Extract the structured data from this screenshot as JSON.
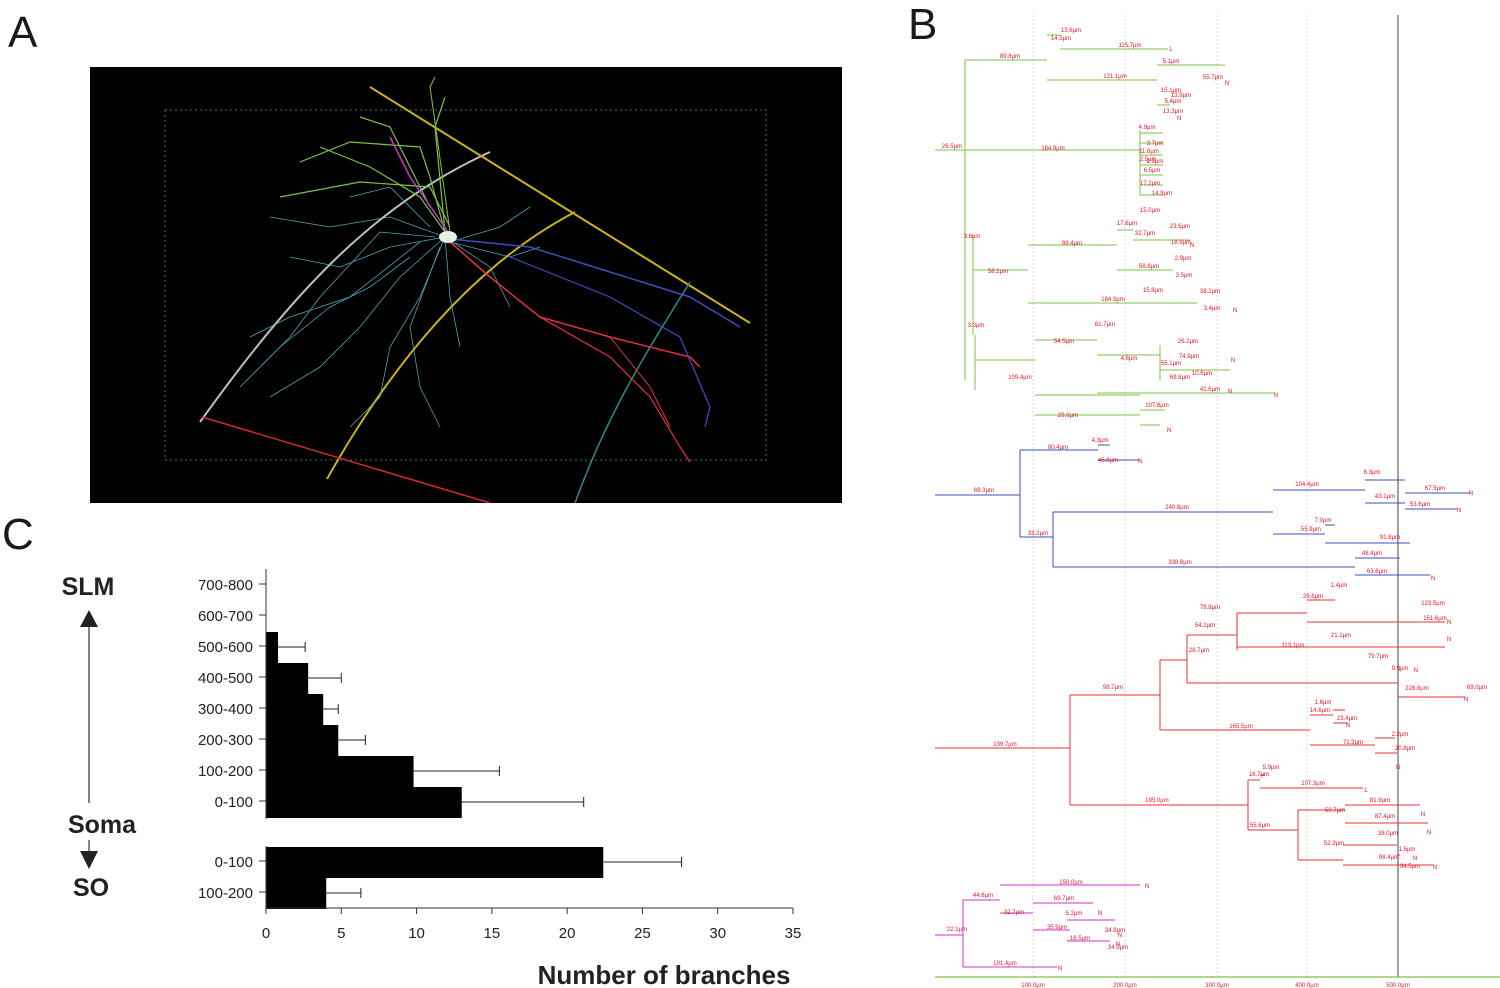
{
  "panels": {
    "a": "A",
    "b": "B",
    "c": "C"
  },
  "colors": {
    "background": "#ffffff",
    "bar": "#000000",
    "dendrite_green": "#7cc242",
    "dendrite_blue": "#3c4fbf",
    "dendrite_red": "#e8303a",
    "dendrite_magenta": "#cc33cc",
    "axis": "#7cc242"
  },
  "micrograph": {
    "description_icon": "neuron-reconstruction"
  },
  "dendrogram": {
    "x_ticks": [
      "100.0µm",
      "200.0µm",
      "300.0µm",
      "400.0µm",
      "500.0µm"
    ],
    "labels": {
      "green": [
        "13.6µm",
        "14.5µm",
        "115.7µm",
        "89.8µm",
        "121.1µm",
        "5.1µm",
        "55.7µm",
        "15.1µm",
        "13.9µm",
        "5.4µm",
        "13.3µm",
        "26.5µm",
        "184.9µm",
        "4.9µm",
        "3.7µm",
        "11.6µm",
        "2.5µm",
        "2.9µm",
        "6.5µm",
        "17.2µm",
        "14.9µm",
        "15.0µm",
        "17.6µm",
        "23.6µm",
        "32.7µm",
        "18.9µm",
        "3.8µm",
        "99.4µm",
        "2.9µm",
        "58.8µm",
        "3.5µm",
        "58.1µm",
        "15.8µm",
        "184.3µm",
        "38.2µm",
        "3.4µm",
        "3.0µm",
        "61.7µm",
        "54.5µm",
        "26.2µm",
        "74.9µm",
        "4.6µm",
        "55.1µm",
        "10.6µm",
        "69.8µm",
        "109.4µm",
        "41.6µm",
        "107.8µm",
        "29.8µm"
      ],
      "blue": [
        "80.4µm",
        "4.3µm",
        "45.8µm",
        "69.3µm",
        "104.4µm",
        "6.3µm",
        "67.5µm",
        "43.1µm",
        "53.6µm",
        "240.8µm",
        "7.0µm",
        "55.9µm",
        "91.8µm",
        "33.2µm",
        "48.4µm",
        "338.8µm",
        "63.6µm"
      ],
      "red": [
        "1.4µm",
        "29.6µm",
        "123.5µm",
        "78.8µm",
        "151.6µm",
        "54.2µm",
        "21.1µm",
        "113.1µm",
        "79.7µm",
        "28.7µm",
        "9.9µm",
        "228.8µm",
        "69.0µm",
        "98.7µm",
        "1.6µm",
        "14.6µm",
        "23.4µm",
        "165.5µm",
        "2.2µm",
        "71.3µm",
        "20.8µm",
        "139.7µm",
        "5.9µm",
        "16.7µm",
        "107.3µm",
        "195.0µm",
        "81.9µm",
        "50.7µm",
        "87.4µm",
        "55.6µm",
        "38.0µm",
        "52.3µm",
        "1.5µm",
        "98.4µm",
        "34.5µm"
      ],
      "magenta": [
        "150.0µm",
        "44.6µm",
        "69.7µm",
        "32.7µm",
        "5.2µm",
        "35.9µm",
        "34.8µm",
        "18.5µm",
        "34.5µm",
        "22.1µm",
        "101.4µm"
      ]
    },
    "end_markers": [
      "N",
      "L"
    ]
  },
  "chart_data": {
    "type": "bar",
    "orientation": "horizontal",
    "xlabel": "Number of branches",
    "xlim": [
      0,
      35
    ],
    "x_ticks": [
      0,
      5,
      10,
      15,
      20,
      25,
      30,
      35
    ],
    "top_label": "SLM",
    "middle_label": "Soma",
    "bottom_label": "SO",
    "groups": [
      {
        "name": "SLM side",
        "categories": [
          "700-800",
          "600-700",
          "500-600",
          "400-500",
          "300-400",
          "200-300",
          "100-200",
          "0-100"
        ],
        "values": [
          0,
          0,
          0.8,
          2.8,
          3.8,
          4.8,
          9.8,
          13.0
        ],
        "errors": [
          0,
          0,
          1.8,
          2.2,
          1.0,
          1.8,
          5.7,
          8.1
        ]
      },
      {
        "name": "SO side",
        "categories": [
          "0-100",
          "100-200"
        ],
        "values": [
          22.4,
          4.0
        ],
        "errors": [
          5.2,
          2.3
        ]
      }
    ]
  }
}
